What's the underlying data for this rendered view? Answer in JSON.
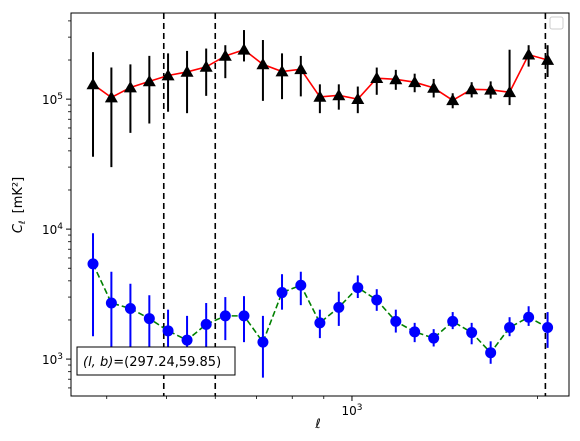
{
  "chart_data": {
    "type": "scatter",
    "xscale": "log",
    "yscale": "log",
    "xlim": [
      350,
      2250
    ],
    "ylim": [
      520,
      460000
    ],
    "xlabel": "ℓ",
    "ylabel_base": "C",
    "ylabel_sub": "ℓ",
    "ylabel_unit": "[mK²]",
    "x_ticks_major": [
      {
        "value": 1000,
        "base": "10",
        "exp": "3"
      }
    ],
    "y_ticks_major": [
      {
        "value": 1000,
        "base": "10",
        "exp": "3"
      },
      {
        "value": 10000,
        "base": "10",
        "exp": "4"
      },
      {
        "value": 100000,
        "base": "10",
        "exp": "5"
      }
    ],
    "annotation": {
      "label": "(l, b)=(297.24,59.85)",
      "prefix_italic": "(l, b)",
      "value_text": "=(297.24,59.85)"
    },
    "legend": {
      "position": "top-right",
      "entries": []
    },
    "grid": false,
    "vlines": [
      495,
      600,
      2060
    ],
    "x": [
      380,
      407,
      437,
      469,
      503,
      540,
      580,
      623,
      668,
      717,
      770,
      826,
      887,
      952,
      1022,
      1097,
      1178,
      1264,
      1357,
      1457,
      1564,
      1679,
      1802,
      1935,
      2077
    ],
    "series": [
      {
        "key": "upper",
        "color": "#000000",
        "line_color": "#ff0000",
        "line_style": "solid",
        "marker": "triangle",
        "values": [
          130000,
          103000,
          123000,
          137000,
          152000,
          162000,
          177000,
          215000,
          240000,
          185000,
          163000,
          170000,
          104000,
          107000,
          100000,
          145000,
          142000,
          135000,
          122000,
          98000,
          119000,
          118000,
          113000,
          220000,
          200000
        ],
        "err_low": [
          36000,
          30000,
          55000,
          65000,
          80000,
          78000,
          106000,
          145000,
          195000,
          97000,
          100000,
          105000,
          78000,
          83000,
          78000,
          108000,
          118000,
          113000,
          103000,
          85000,
          103000,
          101000,
          90000,
          178000,
          148000
        ],
        "err_high": [
          230000,
          175000,
          185000,
          215000,
          225000,
          235000,
          245000,
          260000,
          340000,
          285000,
          225000,
          215000,
          130000,
          130000,
          125000,
          175000,
          168000,
          157000,
          143000,
          111000,
          135000,
          137000,
          240000,
          260000,
          260000
        ]
      },
      {
        "key": "lower",
        "color": "#0000ff",
        "line_color": "#008000",
        "line_style": "dashed",
        "marker": "circle",
        "values": [
          5400,
          2700,
          2450,
          2050,
          1650,
          1400,
          1850,
          2150,
          2150,
          1350,
          3250,
          3700,
          1900,
          2500,
          3550,
          2850,
          1950,
          1620,
          1450,
          1950,
          1600,
          1120,
          1750,
          2100,
          1750
        ],
        "err_low": [
          1500,
          1150,
          1050,
          1000,
          960,
          880,
          1200,
          1400,
          1350,
          720,
          2400,
          2600,
          1450,
          1800,
          2950,
          2350,
          1600,
          1350,
          1250,
          1700,
          1300,
          920,
          1500,
          1800,
          1220
        ],
        "err_high": [
          9300,
          4700,
          3800,
          3100,
          2400,
          2150,
          2700,
          3000,
          3050,
          2150,
          4500,
          4700,
          2400,
          3300,
          4400,
          3450,
          2400,
          1900,
          1700,
          2300,
          1900,
          1370,
          2100,
          2550,
          2300
        ]
      }
    ]
  }
}
